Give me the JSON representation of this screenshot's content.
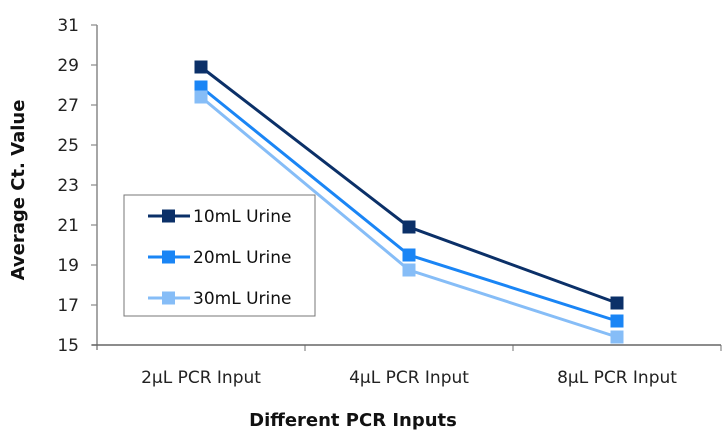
{
  "chart_data": {
    "type": "line",
    "title": "",
    "xlabel": "Different PCR Inputs",
    "ylabel": "Average Ct. Value",
    "categories": [
      "2µL PCR Input",
      "4µL PCR Input",
      "8µL PCR Input"
    ],
    "ylim": [
      15,
      31
    ],
    "yticks": [
      15,
      17,
      19,
      21,
      23,
      25,
      27,
      29,
      31
    ],
    "grid": false,
    "legend_position": "center-left",
    "series": [
      {
        "name": "10mL Urine",
        "color": "#0b3068",
        "values": [
          28.9,
          20.9,
          17.1
        ]
      },
      {
        "name": "20mL Urine",
        "color": "#1a85f5",
        "values": [
          27.9,
          19.5,
          16.2
        ]
      },
      {
        "name": "30mL Urine",
        "color": "#86bdf7",
        "values": [
          27.4,
          18.75,
          15.4
        ]
      }
    ]
  }
}
